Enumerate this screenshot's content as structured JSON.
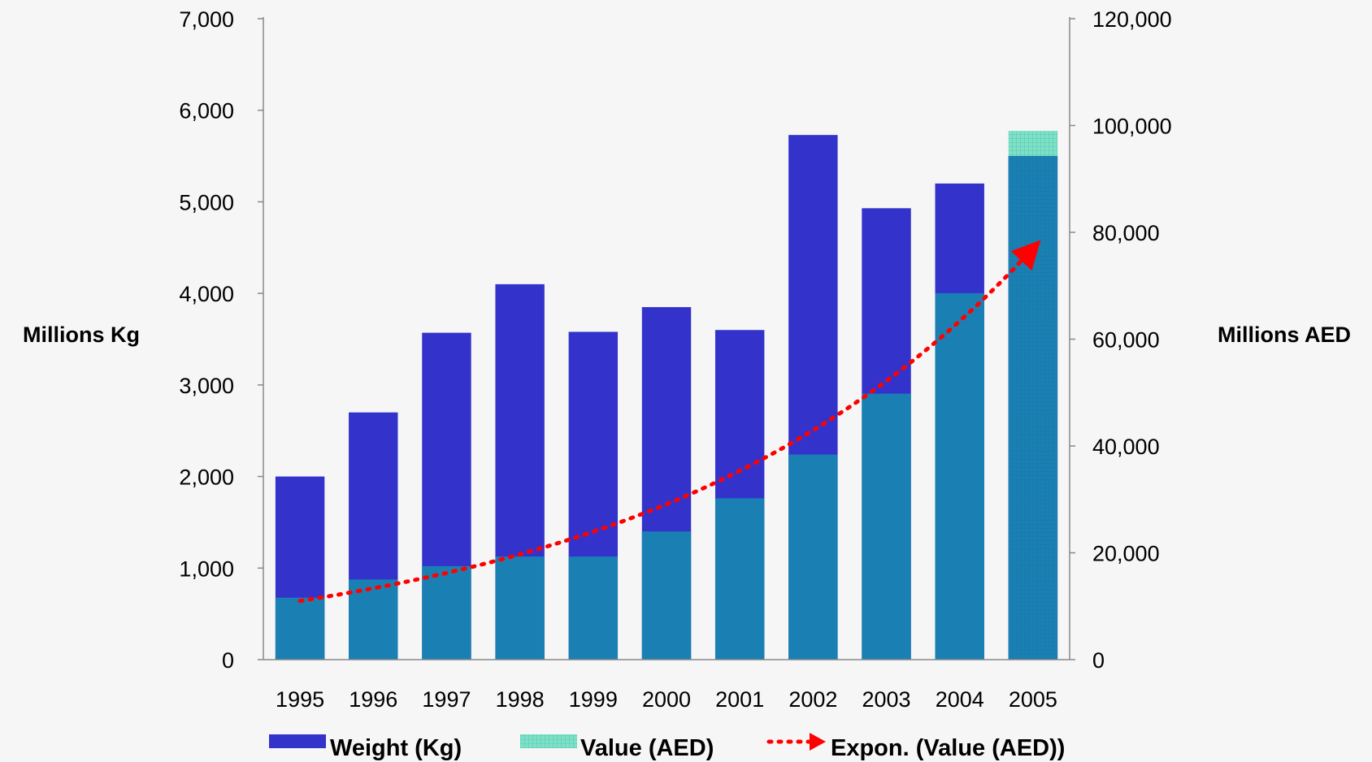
{
  "colors": {
    "weight": "#3333cc",
    "value": "#1a80b3",
    "value_highlight": "#7fe0c8",
    "trend": "#ff0000",
    "axis": "#888888",
    "text": "#000000"
  },
  "chart_data": {
    "type": "bar",
    "categories": [
      "1995",
      "1996",
      "1997",
      "1998",
      "1999",
      "2000",
      "2001",
      "2002",
      "2003",
      "2004",
      "2005"
    ],
    "series": [
      {
        "name": "Weight (Kg)",
        "axis": "left",
        "values": [
          2000,
          2700,
          3570,
          4100,
          3580,
          3850,
          3600,
          5730,
          4930,
          5200,
          5500
        ]
      },
      {
        "name": "Value (AED)",
        "axis": "right",
        "values": [
          11600,
          15000,
          17500,
          19300,
          19300,
          24000,
          30200,
          38400,
          49800,
          68600,
          99000
        ]
      }
    ],
    "trendline": {
      "name": "Expon. (Value (AED))",
      "type": "exponential",
      "start": 11000,
      "end": 77000
    },
    "left_axis": {
      "label": "Millions Kg",
      "min": 0,
      "max": 7000,
      "ticks": [
        "0",
        "1,000",
        "2,000",
        "3,000",
        "4,000",
        "5,000",
        "6,000",
        "7,000"
      ]
    },
    "right_axis": {
      "label": "Millions AED",
      "min": 0,
      "max": 120000,
      "ticks": [
        "0",
        "20,000",
        "40,000",
        "60,000",
        "80,000",
        "100,000",
        "120,000"
      ]
    },
    "legend": {
      "position": "bottom",
      "items": [
        "Weight (Kg)",
        "Value (AED)",
        "Expon. (Value (AED))"
      ]
    },
    "grid": false
  }
}
